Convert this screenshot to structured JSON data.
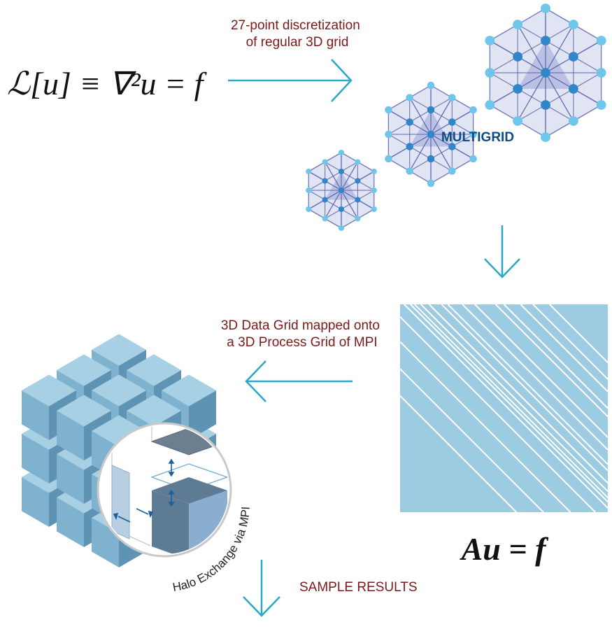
{
  "equation_top": "ℒ[u] ≡ ∇²u = f",
  "caption_discretization": [
    "27-point discretization",
    "of regular 3D grid"
  ],
  "multigrid_label": "MULTIGRID",
  "caption_mapping": [
    "3D Data Grid mapped onto",
    "a 3D Process Grid of MPI"
  ],
  "equation_bottom": "Au = f",
  "halo_label": "Halo Exchange via MPI",
  "caption_results": "SAMPLE RESULTS",
  "colors": {
    "arrow": "#2aa7c9",
    "caption": "#7a1a1a",
    "matrix_bg": "#9ccbe2",
    "cube_top": "#a8d0e4",
    "cube_left": "#7fb2cf",
    "cube_right": "#5f93b3",
    "node_light": "#6ec6ea",
    "node_dark": "#2f86c8",
    "hex_fill": "#c9cde8",
    "multigrid_text": "#0e4a86"
  },
  "icons": [
    "arrow-right-icon",
    "arrow-down-icon",
    "arrow-left-icon",
    "arrow-down-icon"
  ]
}
